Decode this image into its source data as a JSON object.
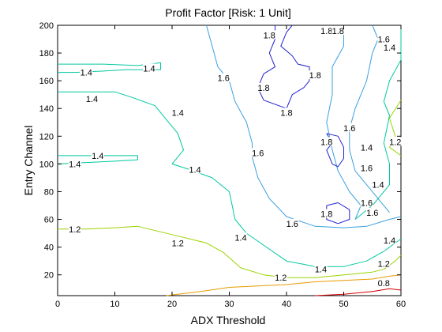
{
  "chart_data": {
    "type": "contour",
    "title": "Profit Factor [Risk: 1 Unit]",
    "xlabel": "ADX Threshold",
    "ylabel": "Entry Channel",
    "xlim": [
      0,
      60
    ],
    "ylim": [
      5,
      200
    ],
    "xticks": [
      "0",
      "10",
      "20",
      "30",
      "40",
      "50",
      "60"
    ],
    "yticks": [
      "20",
      "40",
      "60",
      "80",
      "100",
      "120",
      "140",
      "160",
      "180",
      "200"
    ],
    "grid": false,
    "contours": [
      {
        "level": 0.8,
        "color": "#d40000",
        "paths": [
          [
            [
              45,
              5
            ],
            [
              50,
              6
            ],
            [
              55,
              8
            ],
            [
              58,
              10
            ],
            [
              60,
              9
            ]
          ]
        ],
        "labels": [
          {
            "text": "0.8",
            "x": 57,
            "y": 14
          }
        ]
      },
      {
        "level": 1.0,
        "color": "#e89a00",
        "paths": [
          [
            [
              19,
              5
            ],
            [
              25,
              8
            ],
            [
              30,
              11
            ],
            [
              35,
              12
            ],
            [
              40,
              13
            ],
            [
              45,
              15
            ],
            [
              50,
              16
            ],
            [
              55,
              17
            ],
            [
              58,
              19
            ],
            [
              60,
              20
            ]
          ]
        ],
        "labels": []
      },
      {
        "level": 1.2,
        "color": "#9ad400",
        "paths": [
          [
            [
              0,
              53
            ],
            [
              5,
              53
            ],
            [
              10,
              54
            ],
            [
              14,
              55
            ],
            [
              18,
              51
            ],
            [
              22,
              47
            ],
            [
              26,
              43
            ],
            [
              29,
              36
            ],
            [
              32,
              25
            ],
            [
              36,
              20
            ],
            [
              40,
              18
            ],
            [
              45,
              18
            ],
            [
              50,
              20
            ],
            [
              55,
              22
            ],
            [
              57,
              24
            ],
            [
              59,
              30
            ],
            [
              60,
              34
            ]
          ],
          [
            [
              60,
              106
            ],
            [
              58,
              112
            ],
            [
              59,
              120
            ],
            [
              58,
              133
            ],
            [
              60,
              146
            ]
          ]
        ],
        "labels": [
          {
            "text": "1.2",
            "x": 3,
            "y": 53
          },
          {
            "text": "1.2",
            "x": 21,
            "y": 43
          },
          {
            "text": "1.2",
            "x": 39,
            "y": 18
          },
          {
            "text": "1.2",
            "x": 57,
            "y": 28
          },
          {
            "text": "1.2",
            "x": 59,
            "y": 116
          }
        ]
      },
      {
        "level": 1.4,
        "color": "#00c8a0",
        "paths": [
          [
            [
              0,
              172
            ],
            [
              8,
              172
            ],
            [
              14,
              171
            ],
            [
              18,
              173
            ],
            [
              18,
              168
            ],
            [
              15,
              168
            ],
            [
              12,
              168
            ],
            [
              8,
              167
            ],
            [
              3,
              166
            ],
            [
              0,
              166
            ]
          ],
          [
            [
              0,
              152
            ],
            [
              5,
              152
            ],
            [
              10,
              152
            ],
            [
              13,
              148
            ],
            [
              17,
              142
            ],
            [
              19,
              132
            ],
            [
              21,
              122
            ],
            [
              22,
              110
            ],
            [
              20,
              100
            ],
            [
              23,
              96
            ],
            [
              27,
              90
            ],
            [
              30,
              80
            ],
            [
              31,
              60
            ],
            [
              33,
              50
            ],
            [
              40,
              30
            ],
            [
              45,
              26
            ],
            [
              50,
              26
            ],
            [
              54,
              30
            ],
            [
              57,
              37
            ],
            [
              60,
              46
            ]
          ],
          [
            [
              0,
              106
            ],
            [
              8,
              106
            ],
            [
              14,
              106
            ],
            [
              14,
              103
            ],
            [
              10,
              102
            ],
            [
              5,
              101
            ],
            [
              0,
              100
            ]
          ],
          [
            [
              52,
              60
            ],
            [
              55,
              70
            ],
            [
              58,
              85
            ],
            [
              58,
              100
            ],
            [
              57,
              115
            ],
            [
              58,
              135
            ],
            [
              57,
              145
            ],
            [
              58,
              160
            ],
            [
              60,
              175
            ],
            [
              60,
              200
            ]
          ]
        ],
        "labels": [
          {
            "text": "1.4",
            "x": 16,
            "y": 169
          },
          {
            "text": "1.4",
            "x": 5,
            "y": 166
          },
          {
            "text": "1.4",
            "x": 6,
            "y": 147
          },
          {
            "text": "1.4",
            "x": 21,
            "y": 137
          },
          {
            "text": "1.4",
            "x": 7,
            "y": 106
          },
          {
            "text": "1.4",
            "x": 3,
            "y": 100
          },
          {
            "text": "1.4",
            "x": 24,
            "y": 96
          },
          {
            "text": "1.4",
            "x": 32,
            "y": 47
          },
          {
            "text": "1.4",
            "x": 46,
            "y": 24
          },
          {
            "text": "1.4",
            "x": 58,
            "y": 45
          },
          {
            "text": "1.4",
            "x": 56,
            "y": 85
          },
          {
            "text": "1.4",
            "x": 54,
            "y": 112
          },
          {
            "text": "1.4",
            "x": 58,
            "y": 184
          }
        ]
      },
      {
        "level": 1.6,
        "color": "#3aa0e0",
        "paths": [
          [
            [
              26,
              200
            ],
            [
              27,
              185
            ],
            [
              28,
              170
            ],
            [
              30,
              160
            ],
            [
              31,
              145
            ],
            [
              33,
              130
            ],
            [
              34,
              115
            ],
            [
              34,
              105
            ],
            [
              35,
              90
            ],
            [
              37,
              75
            ],
            [
              40,
              62
            ],
            [
              45,
              55
            ],
            [
              50,
              54
            ],
            [
              54,
              55
            ],
            [
              58,
              60
            ],
            [
              60,
              62
            ]
          ],
          [
            [
              50,
              200
            ],
            [
              50,
              185
            ],
            [
              48,
              170
            ],
            [
              48,
              150
            ],
            [
              47,
              130
            ],
            [
              48,
              110
            ],
            [
              49,
              95
            ],
            [
              51,
              80
            ],
            [
              53,
              70
            ],
            [
              52,
              60
            ]
          ],
          [
            [
              55,
              200
            ],
            [
              56,
              190
            ],
            [
              55,
              180
            ],
            [
              54,
              160
            ],
            [
              52,
              140
            ],
            [
              51,
              125
            ],
            [
              51,
              110
            ],
            [
              52,
              95
            ],
            [
              54,
              85
            ],
            [
              56,
              75
            ],
            [
              58,
              65
            ]
          ]
        ],
        "labels": [
          {
            "text": "1.6",
            "x": 29,
            "y": 162
          },
          {
            "text": "1.6",
            "x": 35,
            "y": 108
          },
          {
            "text": "1.6",
            "x": 41,
            "y": 57
          },
          {
            "text": "1.6",
            "x": 57,
            "y": 190
          },
          {
            "text": "1.6",
            "x": 51,
            "y": 126
          },
          {
            "text": "1.6",
            "x": 54,
            "y": 97
          },
          {
            "text": "1.6",
            "x": 54,
            "y": 72
          },
          {
            "text": "1.6",
            "x": 55,
            "y": 65
          }
        ]
      },
      {
        "level": 1.8,
        "color": "#2020d0",
        "paths": [
          [
            [
              38,
              200
            ],
            [
              38,
              190
            ],
            [
              37,
              180
            ],
            [
              38,
              170
            ],
            [
              36,
              165
            ],
            [
              35,
              155
            ],
            [
              36,
              146
            ],
            [
              40,
              140
            ],
            [
              41,
              150
            ],
            [
              43,
              155
            ],
            [
              44,
              160
            ],
            [
              44,
              170
            ],
            [
              42,
              172
            ],
            [
              41,
              178
            ],
            [
              39,
              185
            ],
            [
              40,
              195
            ],
            [
              41,
              200
            ]
          ],
          [
            [
              47,
              122
            ],
            [
              48,
              115
            ],
            [
              47,
              110
            ],
            [
              48,
              100
            ],
            [
              49,
              98
            ],
            [
              50,
              104
            ],
            [
              50,
              112
            ],
            [
              49,
              120
            ],
            [
              47,
              122
            ]
          ],
          [
            [
              47,
              70
            ],
            [
              49,
              72
            ],
            [
              51,
              67
            ],
            [
              51,
              60
            ],
            [
              49,
              57
            ],
            [
              47,
              60
            ],
            [
              47,
              70
            ]
          ]
        ],
        "labels": [
          {
            "text": "1.8",
            "x": 37,
            "y": 193
          },
          {
            "text": "1.8",
            "x": 36,
            "y": 155
          },
          {
            "text": "1.8",
            "x": 45,
            "y": 164
          },
          {
            "text": "1.8",
            "x": 40,
            "y": 137
          },
          {
            "text": "1.8",
            "x": 47,
            "y": 116
          },
          {
            "text": "1.8",
            "x": 47,
            "y": 64
          },
          {
            "text": "1.8",
            "x": 47,
            "y": 196
          },
          {
            "text": "1.8",
            "x": 49,
            "y": 196
          }
        ]
      }
    ]
  }
}
